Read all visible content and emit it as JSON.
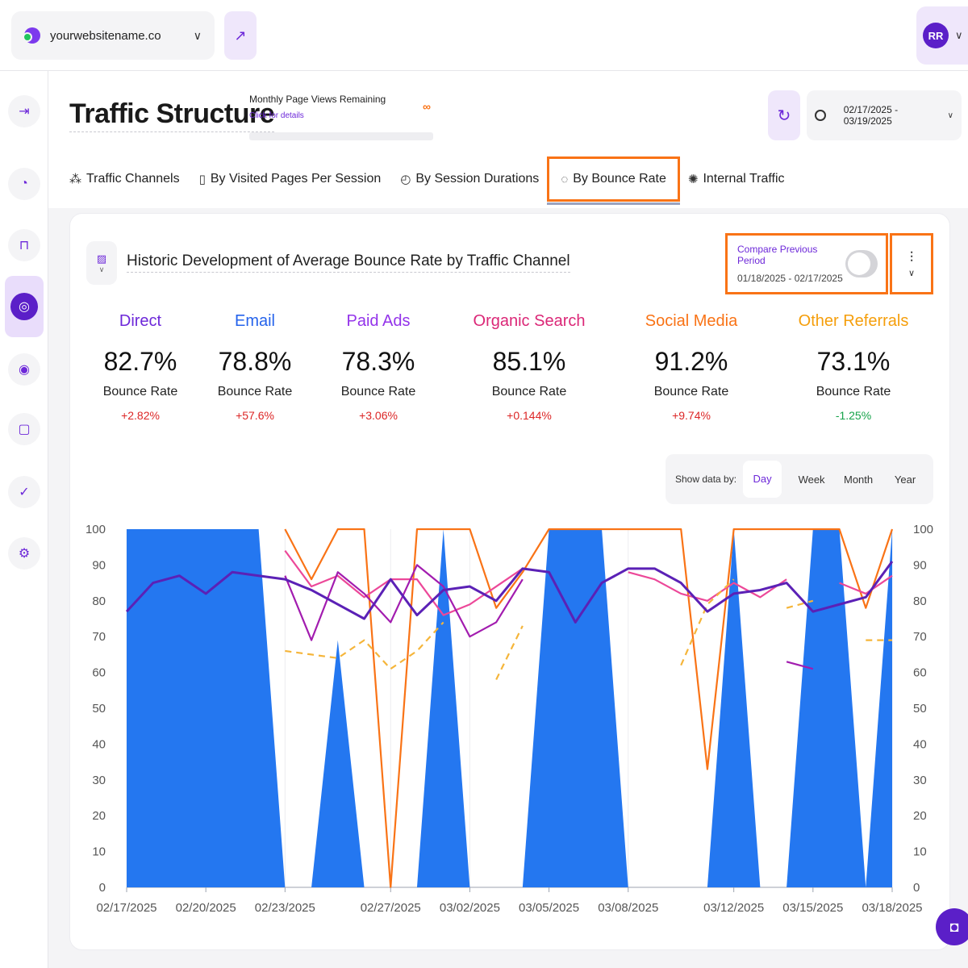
{
  "topbar": {
    "site_name": "yourwebsitename.co",
    "avatar_initials": "RR"
  },
  "header": {
    "title": "Traffic Structure",
    "pageviews_label": "Monthly Page Views Remaining",
    "pageviews_link": "Click for details",
    "pageviews_value": "∞",
    "date_range": "02/17/2025 - 03/19/2025"
  },
  "tabs": [
    {
      "label": "Traffic Channels",
      "icon": "network-icon"
    },
    {
      "label": "By Visited Pages Per Session",
      "icon": "pages-icon"
    },
    {
      "label": "By Session Durations",
      "icon": "timer-icon"
    },
    {
      "label": "By Bounce Rate",
      "icon": "bounce-icon"
    },
    {
      "label": "Internal Traffic",
      "icon": "internal-icon"
    }
  ],
  "card": {
    "title": "Historic Development of Average Bounce Rate by Traffic Channel",
    "compare_label": "Compare Previous Period",
    "compare_range": "01/18/2025 - 02/17/2025"
  },
  "stats": [
    {
      "channel": "Direct",
      "value": "82.7%",
      "label": "Bounce Rate",
      "delta": "+2.82%",
      "color": "#6d28d9",
      "delta_color": "#dc2626"
    },
    {
      "channel": "Email",
      "value": "78.8%",
      "label": "Bounce Rate",
      "delta": "+57.6%",
      "color": "#2563eb",
      "delta_color": "#dc2626"
    },
    {
      "channel": "Paid Ads",
      "value": "78.3%",
      "label": "Bounce Rate",
      "delta": "+3.06%",
      "color": "#9333ea",
      "delta_color": "#dc2626"
    },
    {
      "channel": "Organic Search",
      "value": "85.1%",
      "label": "Bounce Rate",
      "delta": "+0.144%",
      "color": "#db2777",
      "delta_color": "#dc2626"
    },
    {
      "channel": "Social Media",
      "value": "91.2%",
      "label": "Bounce Rate",
      "delta": "+9.74%",
      "color": "#f97316",
      "delta_color": "#dc2626"
    },
    {
      "channel": "Other Referrals",
      "value": "73.1%",
      "label": "Bounce Rate",
      "delta": "-1.25%",
      "color": "#f59e0b",
      "delta_color": "#16a34a"
    }
  ],
  "show_by": {
    "label": "Show data by:",
    "options": [
      "Day",
      "Week",
      "Month",
      "Year"
    ],
    "selected": "Day"
  },
  "chart_data": {
    "type": "line",
    "title": "",
    "xlabel": "",
    "ylabel": "",
    "ylim": [
      0,
      100
    ],
    "yticks": [
      0,
      10,
      20,
      30,
      40,
      50,
      60,
      70,
      80,
      90,
      100
    ],
    "x": [
      "02/17/2025",
      "02/18/2025",
      "02/19/2025",
      "02/20/2025",
      "02/21/2025",
      "02/22/2025",
      "02/23/2025",
      "02/24/2025",
      "02/25/2025",
      "02/26/2025",
      "02/27/2025",
      "02/28/2025",
      "03/01/2025",
      "03/02/2025",
      "03/03/2025",
      "03/04/2025",
      "03/05/2025",
      "03/06/2025",
      "03/07/2025",
      "03/08/2025",
      "03/09/2025",
      "03/10/2025",
      "03/11/2025",
      "03/12/2025",
      "03/13/2025",
      "03/14/2025",
      "03/15/2025",
      "03/16/2025",
      "03/17/2025",
      "03/18/2025"
    ],
    "x_tick_labels": [
      "02/17/2025",
      "02/20/2025",
      "02/23/2025",
      "02/27/2025",
      "03/02/2025",
      "03/05/2025",
      "03/08/2025",
      "03/12/2025",
      "03/15/2025",
      "03/18/2025"
    ],
    "series": [
      {
        "name": "Email",
        "style": "area",
        "color": "#2477f0",
        "values": [
          100,
          100,
          100,
          100,
          100,
          100,
          0,
          0,
          69,
          0,
          0,
          0,
          100,
          0,
          0,
          0,
          100,
          100,
          100,
          0,
          0,
          0,
          0,
          100,
          0,
          0,
          100,
          100,
          0,
          100
        ]
      },
      {
        "name": "Social Media",
        "style": "line",
        "color": "#f97316",
        "values": [
          null,
          null,
          null,
          null,
          null,
          null,
          100,
          86,
          100,
          100,
          0,
          100,
          100,
          100,
          78,
          88,
          100,
          100,
          100,
          100,
          100,
          100,
          33,
          100,
          100,
          100,
          100,
          100,
          78,
          100
        ]
      },
      {
        "name": "Organic Search",
        "style": "line",
        "color": "#ec4899",
        "values": [
          null,
          null,
          null,
          null,
          null,
          null,
          94,
          84,
          87,
          81,
          86,
          86,
          76,
          79,
          84,
          89,
          88,
          null,
          null,
          88,
          86,
          82,
          80,
          85,
          81,
          86,
          null,
          85,
          82,
          87
        ]
      },
      {
        "name": "Paid Ads",
        "style": "line",
        "color": "#a21caf",
        "values": [
          null,
          null,
          null,
          null,
          null,
          null,
          87,
          69,
          88,
          82,
          74,
          90,
          84,
          70,
          74,
          86,
          null,
          null,
          null,
          84,
          null,
          null,
          62,
          null,
          null,
          63,
          61,
          null,
          null,
          75
        ]
      },
      {
        "name": "Other Referrals",
        "style": "dashed",
        "color": "#f5b53a",
        "values": [
          null,
          null,
          null,
          null,
          null,
          null,
          66,
          65,
          64,
          69,
          61,
          66,
          74,
          null,
          58,
          73,
          null,
          null,
          null,
          78,
          null,
          62,
          79,
          86,
          null,
          78,
          80,
          null,
          69,
          69
        ]
      },
      {
        "name": "Direct",
        "style": "line",
        "color": "#5b21b6",
        "values": [
          77,
          85,
          87,
          82,
          88,
          87,
          86,
          83,
          79,
          75,
          86,
          76,
          83,
          84,
          80,
          89,
          88,
          74,
          85,
          89,
          89,
          85,
          77,
          82,
          83,
          85,
          77,
          79,
          81,
          91
        ]
      }
    ],
    "grid": true,
    "legend": "none"
  }
}
